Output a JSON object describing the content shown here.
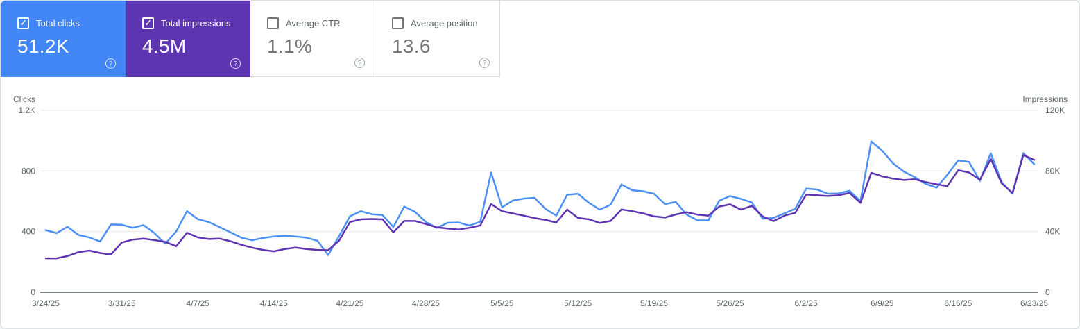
{
  "icons": {
    "check": "✓",
    "help": "?"
  },
  "colors": {
    "clicks_card_bg": "#4285f4",
    "impressions_card_bg": "#5e35b1",
    "clicks_line": "#4d90f5",
    "impressions_line": "#5e35b1",
    "gridline": "#e9eaed",
    "axis_line": "#80868b",
    "tick_text": "#5f6368"
  },
  "cards": [
    {
      "label": "Total clicks",
      "value": "51.2K",
      "selected": true,
      "bg": "#4285f4"
    },
    {
      "label": "Total impressions",
      "value": "4.5M",
      "selected": true,
      "bg": "#5e35b1"
    },
    {
      "label": "Average CTR",
      "value": "1.1%",
      "selected": false,
      "bg": "#ffffff"
    },
    {
      "label": "Average position",
      "value": "13.6",
      "selected": false,
      "bg": "#ffffff"
    }
  ],
  "chart_data": {
    "type": "line",
    "grid": true,
    "legend_position": "metric-cards-top",
    "x_tick_labels": [
      "3/24/25",
      "3/31/25",
      "4/7/25",
      "4/14/25",
      "4/21/25",
      "4/28/25",
      "5/5/25",
      "5/12/25",
      "5/19/25",
      "5/26/25",
      "6/2/25",
      "6/9/25",
      "6/16/25",
      "6/23/25"
    ],
    "x_tick_day_indices": [
      0,
      7,
      14,
      21,
      28,
      35,
      42,
      49,
      56,
      63,
      70,
      77,
      84,
      91
    ],
    "axes": {
      "left": {
        "title": "Clicks",
        "max": 1200,
        "tick_values": [
          1200,
          800,
          400,
          0
        ],
        "tick_labels": [
          "1.2K",
          "800",
          "400",
          "0"
        ]
      },
      "right": {
        "title": "Impressions",
        "max": 120000,
        "tick_values": [
          120000,
          80000,
          40000,
          0
        ],
        "tick_labels": [
          "120K",
          "80K",
          "40K",
          "0"
        ]
      }
    },
    "series": [
      {
        "name": "Total clicks",
        "axis": "left",
        "color": "#4d90f5",
        "values": [
          410,
          390,
          432,
          378,
          362,
          335,
          447,
          445,
          425,
          443,
          390,
          320,
          400,
          535,
          482,
          463,
          430,
          395,
          360,
          343,
          358,
          368,
          372,
          368,
          360,
          340,
          245,
          370,
          501,
          535,
          515,
          509,
          430,
          565,
          530,
          463,
          424,
          458,
          460,
          440,
          465,
          790,
          560,
          605,
          618,
          623,
          550,
          505,
          643,
          650,
          590,
          545,
          577,
          711,
          673,
          666,
          650,
          581,
          596,
          512,
          474,
          474,
          604,
          635,
          616,
          592,
          485,
          490,
          520,
          551,
          684,
          678,
          650,
          652,
          669,
          602,
          995,
          934,
          851,
          796,
          760,
          715,
          690,
          775,
          870,
          860,
          735,
          918,
          727,
          650,
          918,
          845
        ]
      },
      {
        "name": "Total impressions",
        "axis": "right",
        "color": "#5e35b1",
        "values": [
          22400,
          22400,
          23900,
          26400,
          27500,
          25900,
          24900,
          32800,
          34700,
          35400,
          34400,
          33200,
          30300,
          39200,
          36200,
          35100,
          35400,
          33600,
          31300,
          29400,
          27900,
          27000,
          28500,
          29400,
          28500,
          27900,
          27700,
          34000,
          46300,
          48100,
          48300,
          48100,
          39500,
          47000,
          47000,
          45000,
          42800,
          42000,
          41300,
          42500,
          44000,
          58100,
          53500,
          52000,
          50500,
          48900,
          47700,
          46000,
          54500,
          49000,
          48100,
          45700,
          47000,
          54600,
          53500,
          52000,
          50000,
          49300,
          51300,
          52800,
          51200,
          50500,
          56500,
          58000,
          54500,
          57000,
          50000,
          46900,
          50500,
          52400,
          64500,
          64000,
          63500,
          64000,
          65500,
          59000,
          78800,
          76500,
          75000,
          74000,
          74500,
          72700,
          71200,
          70000,
          80500,
          79000,
          74200,
          88000,
          71900,
          65500,
          90500,
          87300
        ]
      }
    ]
  }
}
